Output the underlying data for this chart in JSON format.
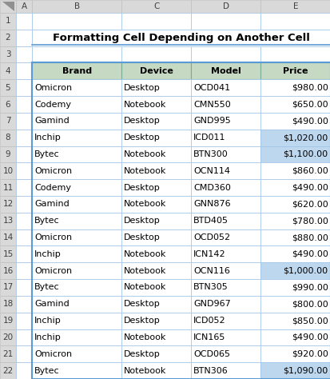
{
  "title": "Formatting Cell Depending on Another Cell",
  "col_headers": [
    "Brand",
    "Device",
    "Model",
    "Price"
  ],
  "rows": [
    [
      "Omicron",
      "Desktop",
      "OCD041",
      "$980.00"
    ],
    [
      "Codemy",
      "Notebook",
      "CMN550",
      "$650.00"
    ],
    [
      "Gamind",
      "Desktop",
      "GND995",
      "$490.00"
    ],
    [
      "Inchip",
      "Desktop",
      "ICD011",
      "$1,020.00"
    ],
    [
      "Bytec",
      "Notebook",
      "BTN300",
      "$1,100.00"
    ],
    [
      "Omicron",
      "Notebook",
      "OCN114",
      "$860.00"
    ],
    [
      "Codemy",
      "Desktop",
      "CMD360",
      "$490.00"
    ],
    [
      "Gamind",
      "Notebook",
      "GNN876",
      "$620.00"
    ],
    [
      "Bytec",
      "Desktop",
      "BTD405",
      "$780.00"
    ],
    [
      "Omicron",
      "Desktop",
      "OCD052",
      "$880.00"
    ],
    [
      "Inchip",
      "Notebook",
      "ICN142",
      "$490.00"
    ],
    [
      "Omicron",
      "Notebook",
      "OCN116",
      "$1,000.00"
    ],
    [
      "Bytec",
      "Notebook",
      "BTN305",
      "$990.00"
    ],
    [
      "Gamind",
      "Desktop",
      "GND967",
      "$800.00"
    ],
    [
      "Inchip",
      "Desktop",
      "ICD052",
      "$850.00"
    ],
    [
      "Inchip",
      "Notebook",
      "ICN165",
      "$490.00"
    ],
    [
      "Omicron",
      "Desktop",
      "OCD065",
      "$920.00"
    ],
    [
      "Bytec",
      "Notebook",
      "BTN306",
      "$1,090.00"
    ]
  ],
  "highlighted_rows": [
    3,
    4,
    11,
    17
  ],
  "header_bg": "#c6d9c3",
  "highlight_bg": "#bdd7ee",
  "normal_bg": "#ffffff",
  "cell_border_color": "#9dc3e6",
  "header_border_color": "#7aab9c",
  "row_label_bg": "#d9d9d9",
  "row_label_border": "#bfbfbf",
  "col_label_bg": "#d9d9d9",
  "fig_bg": "#ffffff",
  "title_fontsize": 9.5,
  "cell_fontsize": 8.0,
  "row_label_fontsize": 7.5,
  "col_label_fontsize": 7.5
}
